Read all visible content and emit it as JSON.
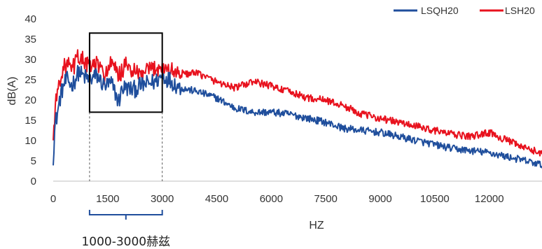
{
  "chart_data": {
    "type": "line",
    "xlabel": "HZ",
    "ylabel": "dB(A)",
    "xlim": [
      0,
      13450
    ],
    "ylim": [
      0,
      40
    ],
    "x_ticks": [
      0,
      1500,
      3000,
      4500,
      6000,
      7500,
      9000,
      10500,
      12000
    ],
    "y_ticks": [
      0,
      5,
      10,
      15,
      20,
      25,
      30,
      35,
      40
    ],
    "grid": false,
    "legend_position": "top-right",
    "series": [
      {
        "name": "LSQH20",
        "color": "#1f4e9c",
        "points": [
          [
            0,
            6
          ],
          [
            50,
            14
          ],
          [
            100,
            16
          ],
          [
            200,
            21
          ],
          [
            300,
            24
          ],
          [
            400,
            25
          ],
          [
            500,
            23.5
          ],
          [
            600,
            25
          ],
          [
            700,
            27
          ],
          [
            800,
            26
          ],
          [
            900,
            25.5
          ],
          [
            1000,
            25
          ],
          [
            1200,
            26
          ],
          [
            1400,
            23.5
          ],
          [
            1600,
            24
          ],
          [
            1700,
            22
          ],
          [
            1800,
            19.5
          ],
          [
            1900,
            23
          ],
          [
            2000,
            23
          ],
          [
            2200,
            22.5
          ],
          [
            2400,
            23.5
          ],
          [
            2600,
            24
          ],
          [
            2800,
            24.5
          ],
          [
            3000,
            26
          ],
          [
            3200,
            25
          ],
          [
            3500,
            23
          ],
          [
            4000,
            22
          ],
          [
            4500,
            20.5
          ],
          [
            5000,
            18
          ],
          [
            5500,
            17
          ],
          [
            6000,
            17
          ],
          [
            6500,
            16.5
          ],
          [
            7000,
            15.5
          ],
          [
            7500,
            14.5
          ],
          [
            8000,
            13
          ],
          [
            8500,
            12.5
          ],
          [
            9000,
            12
          ],
          [
            9500,
            11
          ],
          [
            10000,
            10
          ],
          [
            10500,
            9
          ],
          [
            11000,
            8
          ],
          [
            11500,
            7.5
          ],
          [
            12000,
            7
          ],
          [
            12500,
            6
          ],
          [
            13000,
            5
          ],
          [
            13450,
            4
          ]
        ]
      },
      {
        "name": "LSH20",
        "color": "#e8121e",
        "points": [
          [
            0,
            10
          ],
          [
            50,
            18
          ],
          [
            100,
            21
          ],
          [
            200,
            26
          ],
          [
            300,
            28
          ],
          [
            400,
            29
          ],
          [
            500,
            27
          ],
          [
            600,
            29
          ],
          [
            700,
            31
          ],
          [
            800,
            30
          ],
          [
            900,
            29
          ],
          [
            1000,
            28
          ],
          [
            1200,
            29
          ],
          [
            1400,
            26
          ],
          [
            1600,
            29
          ],
          [
            1800,
            26
          ],
          [
            2000,
            28.5
          ],
          [
            2200,
            27
          ],
          [
            2400,
            26
          ],
          [
            2600,
            27
          ],
          [
            2800,
            28
          ],
          [
            3000,
            28
          ],
          [
            3500,
            26.5
          ],
          [
            4000,
            26.5
          ],
          [
            4500,
            24.5
          ],
          [
            5000,
            23
          ],
          [
            5500,
            24.5
          ],
          [
            6000,
            23.5
          ],
          [
            6500,
            22
          ],
          [
            7000,
            20.5
          ],
          [
            7500,
            20
          ],
          [
            8000,
            18.5
          ],
          [
            8500,
            16.5
          ],
          [
            9000,
            15.5
          ],
          [
            9500,
            14.5
          ],
          [
            10000,
            13.5
          ],
          [
            10500,
            12.5
          ],
          [
            11000,
            11.5
          ],
          [
            11500,
            11
          ],
          [
            12000,
            12
          ],
          [
            12500,
            10
          ],
          [
            13000,
            8
          ],
          [
            13450,
            7
          ]
        ]
      }
    ],
    "highlight": {
      "x_range": [
        1000,
        3000
      ],
      "y_range": [
        17,
        36.5
      ]
    },
    "annotation": "1000-3000赫兹"
  }
}
